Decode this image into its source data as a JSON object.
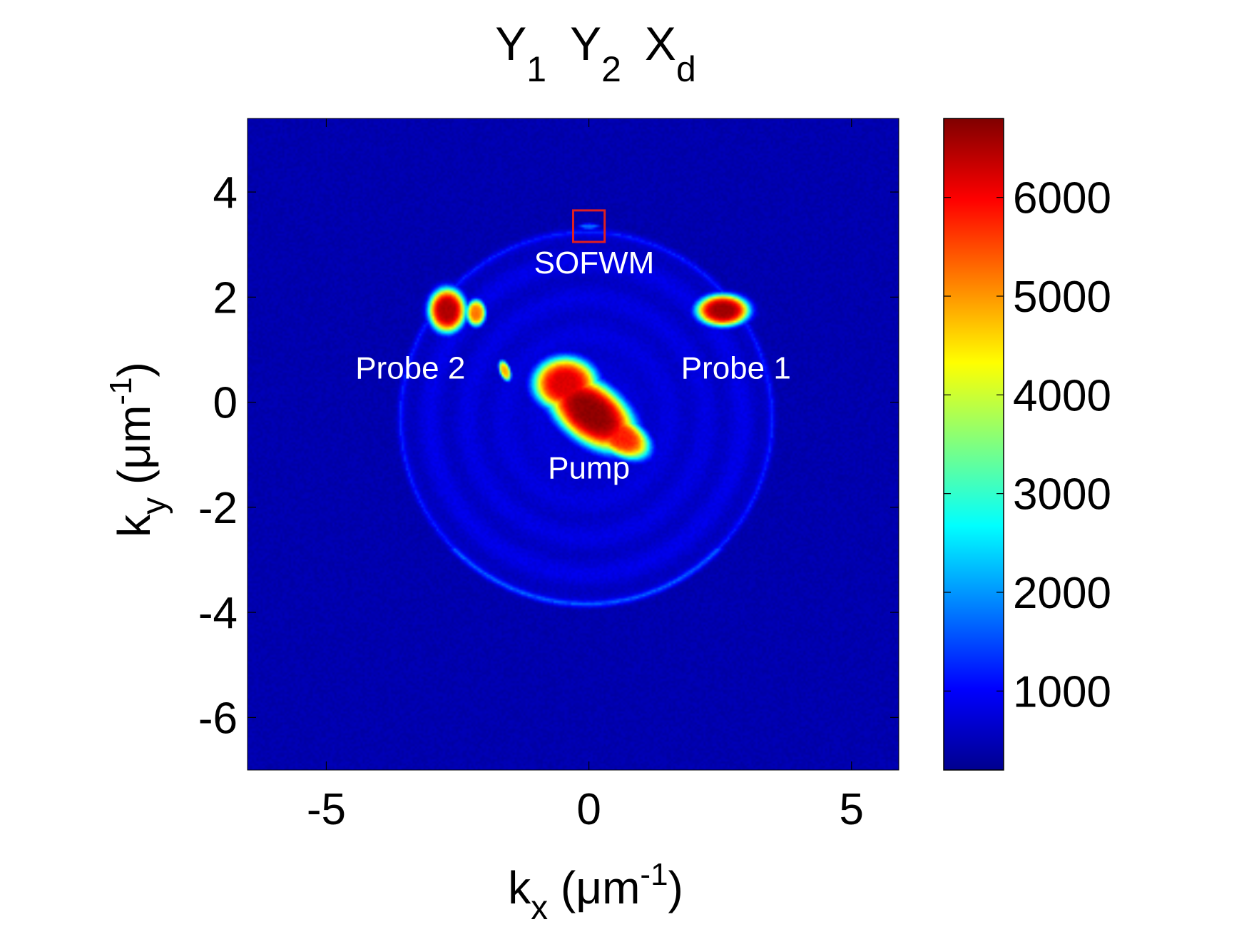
{
  "chart_data": {
    "type": "heatmap",
    "title": {
      "parts": [
        {
          "base": "Y",
          "sub": "1"
        },
        {
          "base": "Y",
          "sub": "2"
        },
        {
          "base": "X",
          "sub": "d"
        }
      ]
    },
    "xlabel": {
      "base": "k",
      "sub": "x",
      "unit_open": " (μm",
      "sup": "-1",
      "unit_close": ")"
    },
    "ylabel": {
      "base": "k",
      "sub": "y",
      "unit_open": " (μm",
      "sup": "-1",
      "unit_close": ")"
    },
    "xlim": [
      -6.5,
      5.9
    ],
    "ylim": [
      -7.0,
      5.4
    ],
    "xticks": [
      -5,
      0,
      5
    ],
    "yticks": [
      -6,
      -4,
      -2,
      0,
      2,
      4
    ],
    "colorbar": {
      "min": 200,
      "max": 6800,
      "ticks": [
        1000,
        2000,
        3000,
        4000,
        5000,
        6000
      ],
      "colormap": "jet"
    },
    "background_value": 500,
    "features": [
      {
        "name": "pump-core",
        "cx": 0.05,
        "cy": -0.2,
        "rx": 0.95,
        "ry": 0.55,
        "angle": -38,
        "value": 6700
      },
      {
        "name": "pump-a",
        "cx": -0.45,
        "cy": 0.35,
        "rx": 0.6,
        "ry": 0.5,
        "angle": 0,
        "value": 6200
      },
      {
        "name": "pump-b",
        "cx": 0.6,
        "cy": -0.65,
        "rx": 0.6,
        "ry": 0.35,
        "angle": -30,
        "value": 5800
      },
      {
        "name": "probe-2",
        "cx": -2.7,
        "cy": 1.75,
        "rx": 0.35,
        "ry": 0.42,
        "angle": 0,
        "value": 6500
      },
      {
        "name": "probe-2-tail",
        "cx": -2.15,
        "cy": 1.7,
        "rx": 0.18,
        "ry": 0.25,
        "angle": 0,
        "value": 5200
      },
      {
        "name": "probe-1",
        "cx": 2.55,
        "cy": 1.75,
        "rx": 0.5,
        "ry": 0.3,
        "angle": 0,
        "value": 6600
      },
      {
        "name": "sofwm",
        "cx": 0.0,
        "cy": 3.35,
        "rx": 0.2,
        "ry": 0.05,
        "angle": 0,
        "value": 1800
      },
      {
        "name": "side-spot",
        "cx": -1.6,
        "cy": 0.6,
        "rx": 0.1,
        "ry": 0.2,
        "angle": 20,
        "value": 4800
      }
    ],
    "ring": {
      "cx": -0.05,
      "cy": -0.3,
      "r": 3.55,
      "value": 900
    },
    "annotations": [
      {
        "text": "SOFWM",
        "x": 0.1,
        "y": 2.45
      },
      {
        "text": "Probe 2",
        "x": -3.4,
        "y": 0.45
      },
      {
        "text": "Probe 1",
        "x": 2.8,
        "y": 0.45
      },
      {
        "text": "Pump",
        "x": 0.0,
        "y": -1.45
      }
    ],
    "highlight_box": {
      "x0": -0.3,
      "x1": 0.3,
      "y0": 3.05,
      "y1": 3.65,
      "color": "#e02020"
    }
  }
}
